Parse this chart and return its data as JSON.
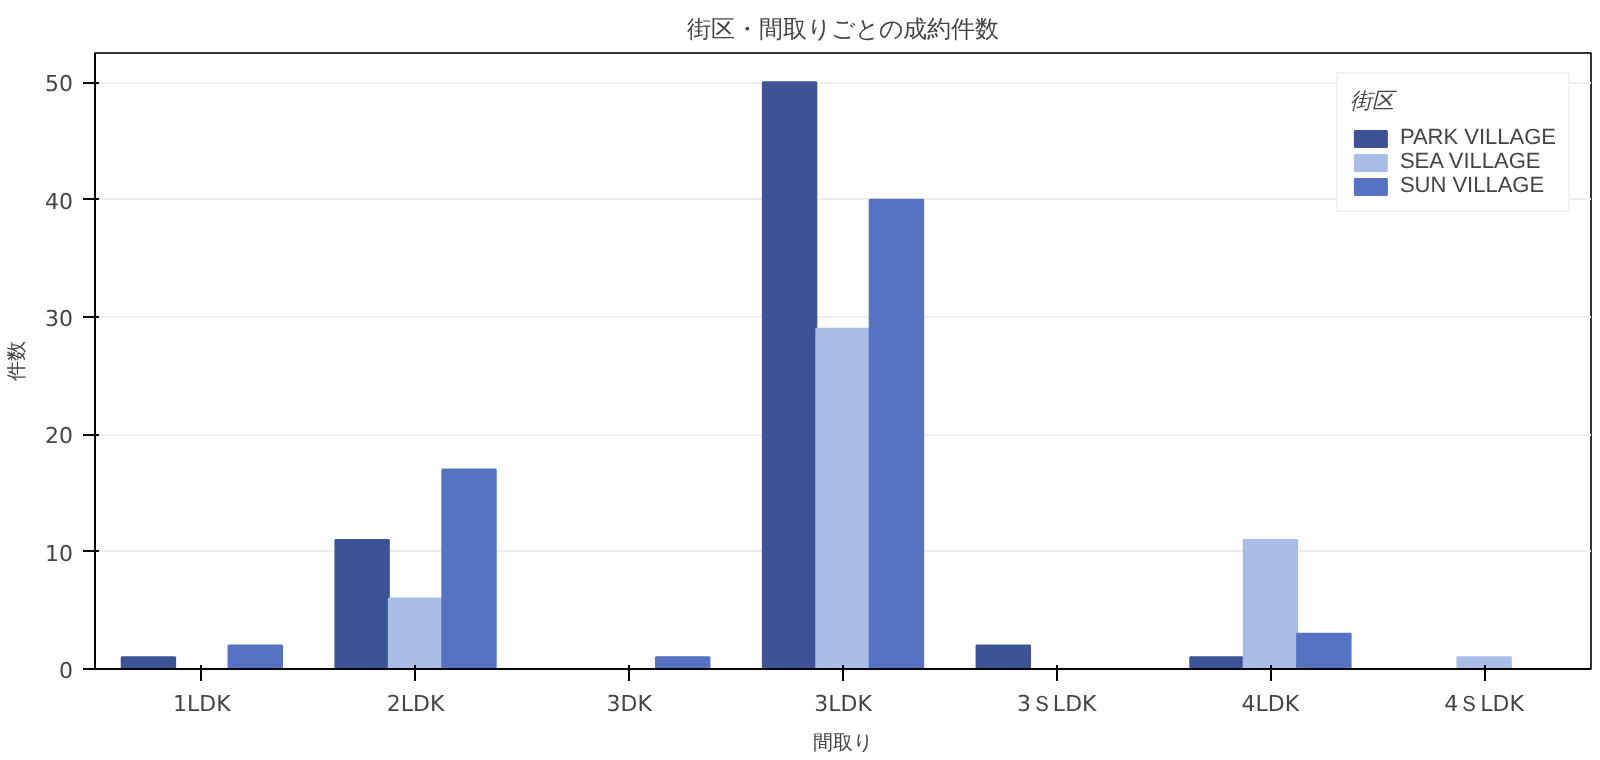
{
  "chart_data": {
    "type": "bar",
    "title": "街区・間取りごとの成約件数",
    "xlabel": "間取り",
    "ylabel": "件数",
    "legend_title": "街区",
    "categories": [
      "1LDK",
      "2LDK",
      "3DK",
      "3LDK",
      "3ＳLDK",
      "4LDK",
      "4ＳLDK"
    ],
    "series": [
      {
        "name": "PARK VILLAGE",
        "color": "#3d5396",
        "values": [
          1,
          11,
          0,
          50,
          2,
          1,
          0
        ]
      },
      {
        "name": "SEA VILLAGE",
        "color": "#a9bde6",
        "values": [
          0,
          6,
          0,
          29,
          0,
          11,
          1
        ]
      },
      {
        "name": "SUN VILLAGE",
        "color": "#5673c3",
        "values": [
          2,
          17,
          1,
          40,
          0,
          3,
          0
        ]
      }
    ],
    "ylim": [
      0,
      52.5
    ],
    "yticks": [
      0,
      10,
      20,
      30,
      40,
      50
    ],
    "grid": "y",
    "legend": "top right"
  }
}
